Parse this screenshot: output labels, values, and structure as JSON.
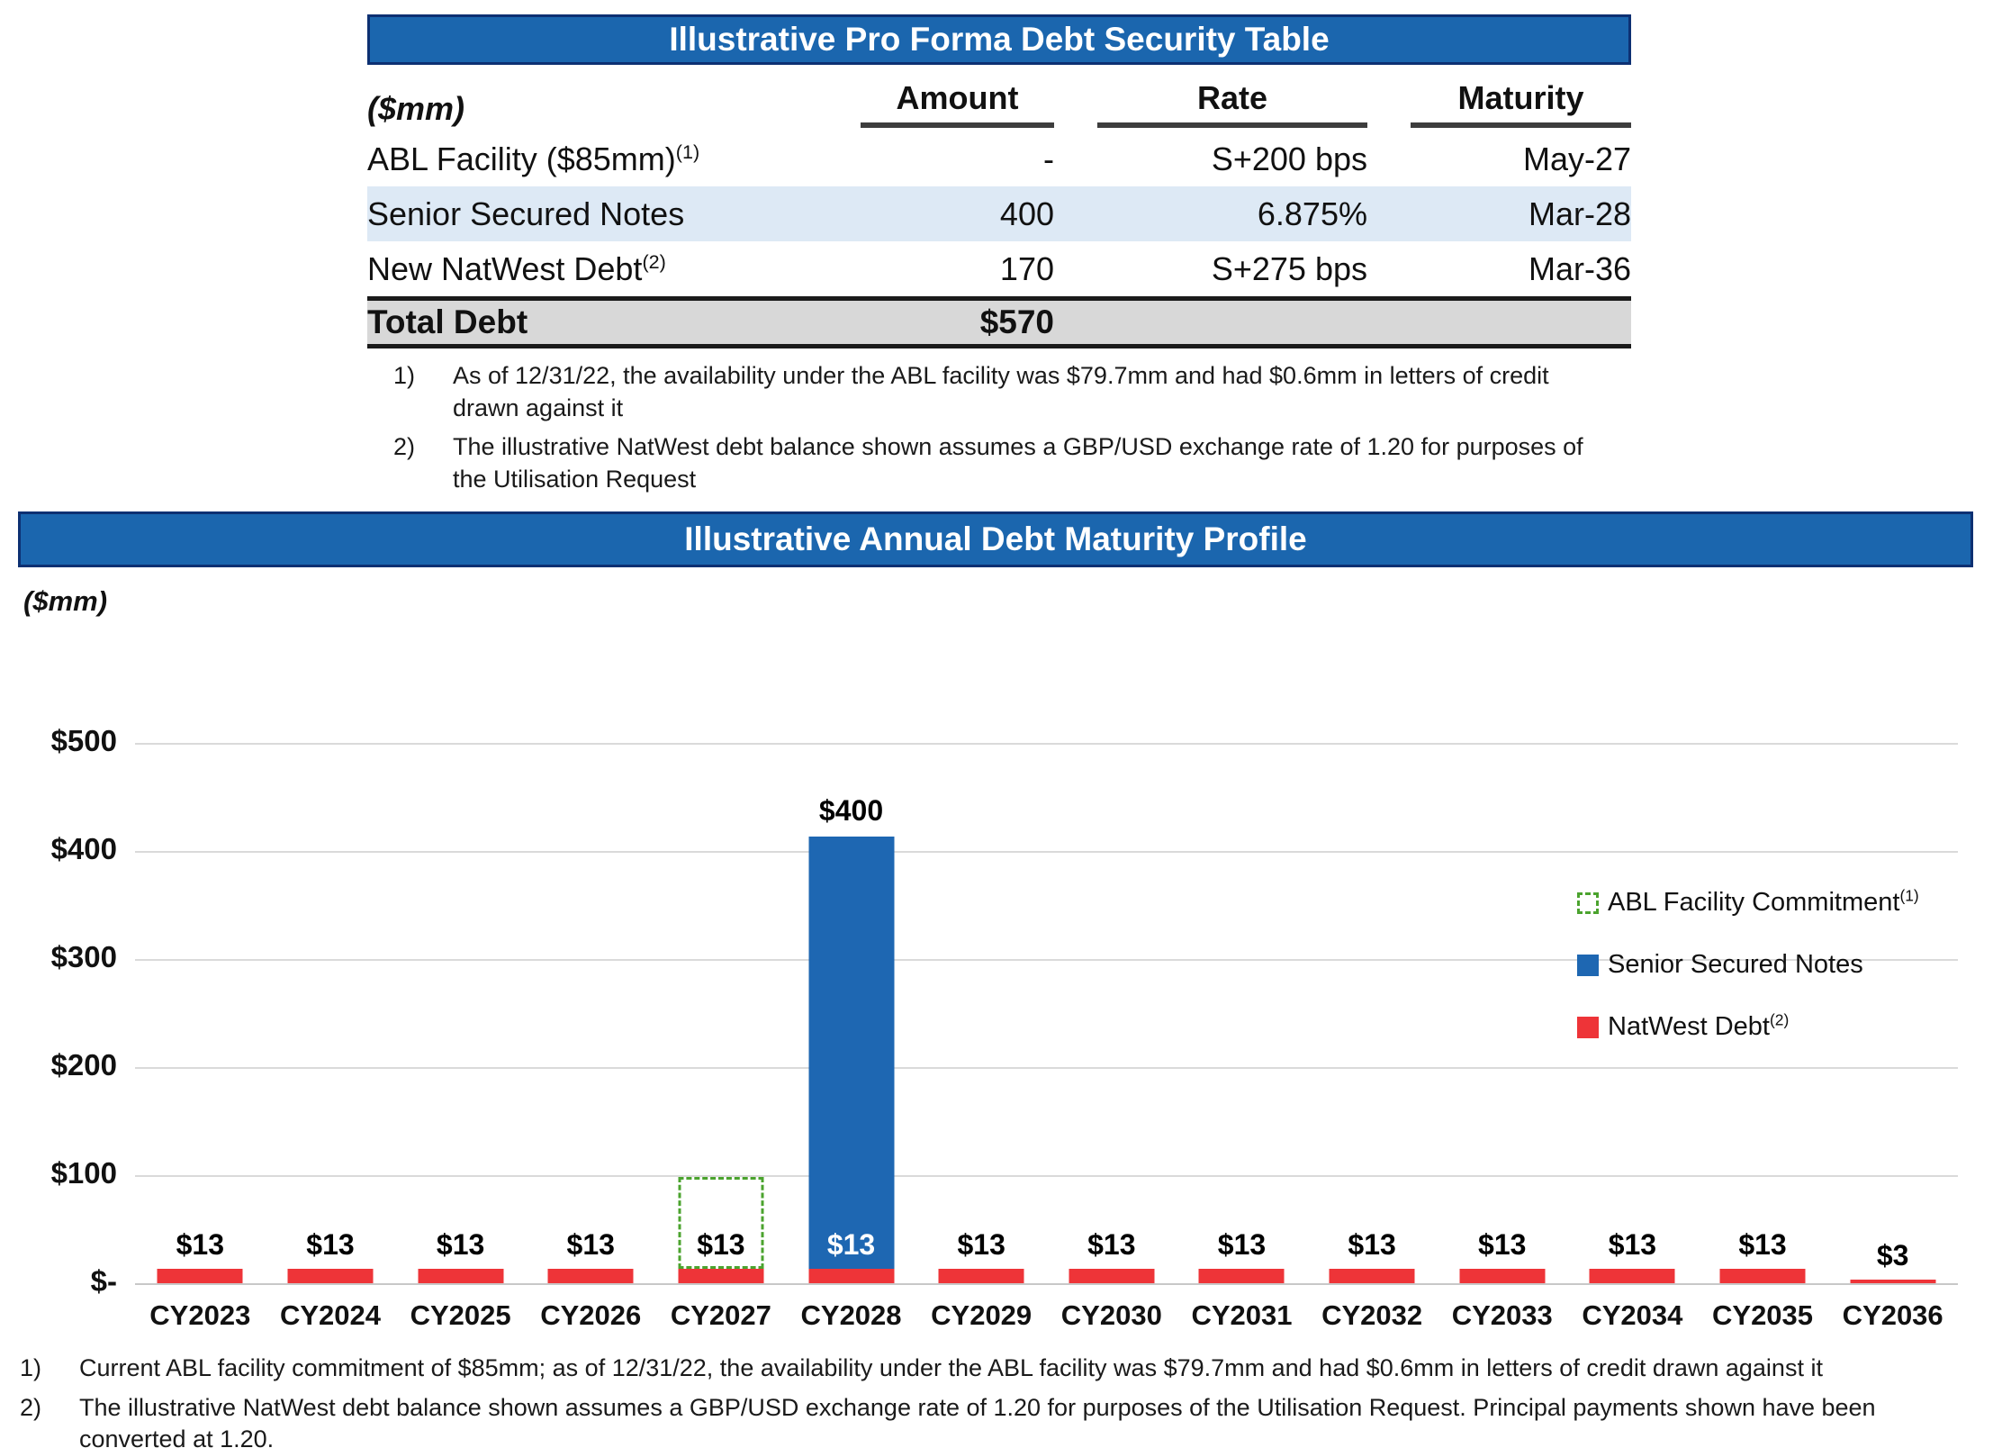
{
  "table": {
    "title": "Illustrative Pro Forma Debt Security Table",
    "unit_label": "($mm)",
    "columns": [
      "Amount",
      "Rate",
      "Maturity"
    ],
    "rows": [
      {
        "name": "ABL Facility ($85mm)",
        "sup": "(1)",
        "amount": "-",
        "rate": "S+200 bps",
        "maturity": "May-27",
        "highlight": false
      },
      {
        "name": "Senior Secured Notes",
        "sup": "",
        "amount": "400",
        "rate": "6.875%",
        "maturity": "Mar-28",
        "highlight": true
      },
      {
        "name": "New NatWest Debt",
        "sup": "(2)",
        "amount": "170",
        "rate": "S+275 bps",
        "maturity": "Mar-36",
        "highlight": false
      }
    ],
    "total": {
      "label": "Total Debt",
      "amount": "$570"
    },
    "footnotes": [
      {
        "num": "1)",
        "text": "As of 12/31/22, the availability under the ABL facility was $79.7mm and had $0.6mm in letters of credit drawn against it"
      },
      {
        "num": "2)",
        "text": "The illustrative NatWest debt balance shown assumes a GBP/USD exchange rate of 1.20 for purposes of the Utilisation Request"
      }
    ]
  },
  "chart": {
    "title": "Illustrative Annual Debt Maturity Profile",
    "unit_label": "($mm)",
    "y_ticks": [
      "$500",
      "$400",
      "$300",
      "$200",
      "$100",
      "$-"
    ],
    "legend": [
      {
        "label": "ABL Facility Commitment",
        "sup": "(1)",
        "swatch": "dash"
      },
      {
        "label": "Senior Secured Notes",
        "sup": "",
        "swatch": "blue"
      },
      {
        "label": "NatWest Debt",
        "sup": "(2)",
        "swatch": "red"
      }
    ]
  },
  "chart_data": {
    "type": "bar",
    "stacked": true,
    "title": "Illustrative Annual Debt Maturity Profile",
    "unit": "$mm",
    "categories": [
      "CY2023",
      "CY2024",
      "CY2025",
      "CY2026",
      "CY2027",
      "CY2028",
      "CY2029",
      "CY2030",
      "CY2031",
      "CY2032",
      "CY2033",
      "CY2034",
      "CY2035",
      "CY2036"
    ],
    "series": [
      {
        "name": "NatWest Debt(2)",
        "style": "solid",
        "color": "#EE3438",
        "values": [
          13,
          13,
          13,
          13,
          13,
          13,
          13,
          13,
          13,
          13,
          13,
          13,
          13,
          3
        ]
      },
      {
        "name": "Senior Secured Notes",
        "style": "solid",
        "color": "#1E67B2",
        "values": [
          0,
          0,
          0,
          0,
          0,
          400,
          0,
          0,
          0,
          0,
          0,
          0,
          0,
          0
        ]
      },
      {
        "name": "ABL Facility Commitment(1)",
        "style": "dashed-outline",
        "color": "#4BA32E",
        "values": [
          0,
          0,
          0,
          0,
          85,
          0,
          0,
          0,
          0,
          0,
          0,
          0,
          0,
          0
        ]
      }
    ],
    "bar_labels": [
      "$13",
      "$13",
      "$13",
      "$13",
      "$13",
      "$13",
      "$13",
      "$13",
      "$13",
      "$13",
      "$13",
      "$13",
      "$13",
      "$3"
    ],
    "annotations": [
      {
        "category": "CY2028",
        "text": "$400",
        "position": "above-stack"
      }
    ],
    "ylim": [
      0,
      500
    ],
    "y_tick_step": 100,
    "grid": true,
    "legend_position": "middle-right"
  },
  "bottom_footnotes": [
    {
      "num": "1)",
      "text": "Current ABL facility commitment of $85mm; as of 12/31/22, the availability under the ABL facility was $79.7mm and had $0.6mm in letters of credit drawn against it"
    },
    {
      "num": "2)",
      "text": "The illustrative NatWest debt balance shown assumes a GBP/USD exchange rate of 1.20 for purposes of the Utilisation Request. Principal payments shown have been converted at 1.20."
    }
  ],
  "colors": {
    "banner_blue": "#1B66AE",
    "banner_border": "#0D3072",
    "row_highlight_blue": "#DDE9F5",
    "total_row_gray": "#D8D8D8",
    "natwest_red": "#EE3438",
    "notes_blue": "#1E67B2",
    "abl_green": "#4BA32E",
    "gridline_gray": "#DADADA"
  }
}
